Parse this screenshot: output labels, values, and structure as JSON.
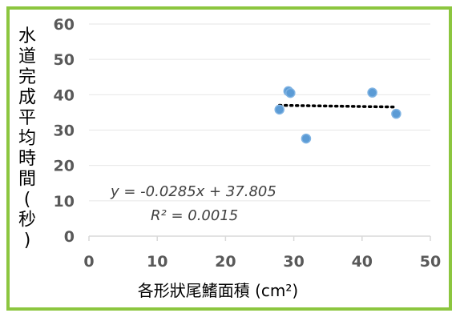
{
  "chart_data": {
    "type": "scatter",
    "xlabel": "各形狀尾鰭面積 (cm²)",
    "ylabel": "水道完成平均時間(秒)",
    "xlim": [
      0,
      50
    ],
    "ylim": [
      0,
      60
    ],
    "x_ticks": [
      "0",
      "10",
      "20",
      "30",
      "40",
      "50"
    ],
    "y_ticks": [
      "0",
      "10",
      "20",
      "30",
      "40",
      "50",
      "60"
    ],
    "grid": "horizontal",
    "series": [
      {
        "points": [
          {
            "x": 27.9,
            "y": 35.8
          },
          {
            "x": 29.2,
            "y": 41.0
          },
          {
            "x": 29.5,
            "y": 40.5
          },
          {
            "x": 31.8,
            "y": 27.6
          },
          {
            "x": 41.5,
            "y": 40.6
          },
          {
            "x": 45.0,
            "y": 34.6
          }
        ],
        "color": "#5b9bd5"
      }
    ],
    "trendline": {
      "slope": -0.0285,
      "intercept": 37.805,
      "x_range": [
        27.9,
        45.0
      ],
      "equation": "y = -0.0285x + 37.805",
      "r_squared": "R² = 0.0015",
      "style": "dotted",
      "color": "#000000"
    }
  }
}
